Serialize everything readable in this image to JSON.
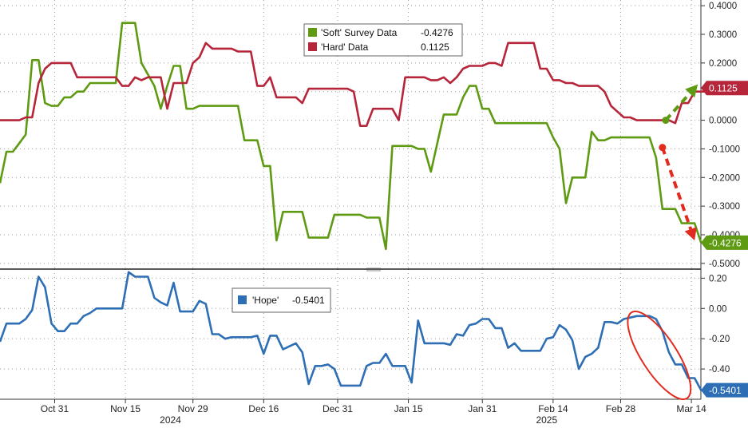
{
  "chart_data": [
    {
      "type": "line",
      "title": "",
      "ylim": [
        -0.52,
        0.42
      ],
      "y_ticks": [
        "0.4000",
        "0.3000",
        "0.2000",
        "0.1000",
        "0.0000",
        "-0.1000",
        "-0.2000",
        "-0.3000",
        "-0.4000",
        "-0.5000"
      ],
      "y_tick_values": [
        0.4,
        0.3,
        0.2,
        0.1,
        0,
        -0.1,
        -0.2,
        -0.3,
        -0.4,
        -0.5
      ],
      "grid": true,
      "legend": "top-center",
      "x_index_range": [
        0,
        106
      ],
      "series": [
        {
          "name": "'Soft' Survey Data",
          "last_label": "-0.4276",
          "color": "#5e9a12",
          "values": [
            -0.22,
            -0.11,
            -0.11,
            -0.08,
            -0.05,
            0.21,
            0.21,
            0.06,
            0.05,
            0.05,
            0.08,
            0.08,
            0.1,
            0.1,
            0.13,
            0.13,
            0.13,
            0.13,
            0.13,
            0.34,
            0.34,
            0.34,
            0.2,
            0.16,
            0.12,
            0.04,
            0.12,
            0.19,
            0.19,
            0.04,
            0.04,
            0.05,
            0.05,
            0.05,
            0.05,
            0.05,
            0.05,
            0.05,
            -0.07,
            -0.07,
            -0.07,
            -0.16,
            -0.16,
            -0.42,
            -0.32,
            -0.32,
            -0.32,
            -0.32,
            -0.41,
            -0.41,
            -0.41,
            -0.41,
            -0.33,
            -0.33,
            -0.33,
            -0.33,
            -0.33,
            -0.34,
            -0.34,
            -0.34,
            -0.45,
            -0.09,
            -0.09,
            -0.09,
            -0.09,
            -0.1,
            -0.1,
            -0.18,
            -0.08,
            0.02,
            0.02,
            0.02,
            0.08,
            0.12,
            0.12,
            0.04,
            0.04,
            -0.01,
            -0.01,
            -0.01,
            -0.01,
            -0.01,
            -0.01,
            -0.01,
            -0.01,
            -0.01,
            -0.06,
            -0.1,
            -0.29,
            -0.2,
            -0.2,
            -0.2,
            -0.04,
            -0.07,
            -0.07,
            -0.06,
            -0.06,
            -0.06,
            -0.06,
            -0.06,
            -0.06,
            -0.06,
            -0.13,
            -0.31,
            -0.31,
            -0.31,
            -0.36,
            -0.36,
            -0.36,
            -0.4276
          ]
        },
        {
          "name": "'Hard' Data",
          "last_label": "0.1125",
          "color": "#b6253a",
          "values": [
            0.0,
            0.0,
            0.0,
            0.0,
            0.01,
            0.01,
            0.13,
            0.18,
            0.2,
            0.2,
            0.2,
            0.2,
            0.15,
            0.15,
            0.15,
            0.15,
            0.15,
            0.15,
            0.15,
            0.12,
            0.12,
            0.15,
            0.14,
            0.15,
            0.15,
            0.15,
            0.04,
            0.13,
            0.13,
            0.13,
            0.2,
            0.22,
            0.27,
            0.25,
            0.25,
            0.25,
            0.25,
            0.24,
            0.24,
            0.24,
            0.12,
            0.12,
            0.15,
            0.08,
            0.08,
            0.08,
            0.08,
            0.06,
            0.11,
            0.11,
            0.11,
            0.11,
            0.11,
            0.11,
            0.11,
            0.1,
            -0.02,
            -0.02,
            0.04,
            0.04,
            0.04,
            0.04,
            0.0,
            0.15,
            0.15,
            0.15,
            0.15,
            0.14,
            0.14,
            0.15,
            0.13,
            0.15,
            0.18,
            0.19,
            0.19,
            0.19,
            0.2,
            0.2,
            0.19,
            0.27,
            0.27,
            0.27,
            0.27,
            0.27,
            0.18,
            0.18,
            0.14,
            0.14,
            0.13,
            0.13,
            0.12,
            0.12,
            0.12,
            0.12,
            0.1,
            0.05,
            0.03,
            0.01,
            0.01,
            0.0,
            0.0,
            0.0,
            0.0,
            0.0,
            0.0,
            -0.01,
            0.06,
            0.06,
            0.1,
            0.1,
            0.1,
            0.1125
          ]
        }
      ],
      "annotations": {
        "arrow_up_color": "#5e9a12",
        "arrow_down_color": "#e12b1f"
      }
    },
    {
      "type": "line",
      "title": "",
      "ylim": [
        -0.6,
        0.26
      ],
      "y_ticks": [
        "0.20",
        "0.00",
        "-0.20",
        "-0.40"
      ],
      "y_tick_values": [
        0.2,
        0,
        -0.2,
        -0.4
      ],
      "grid": true,
      "legend": "top-left",
      "x_index_range": [
        0,
        106
      ],
      "series": [
        {
          "name": "'Hope'",
          "last_label": "-0.5401",
          "color": "#2d6eb4",
          "values": [
            -0.22,
            -0.1,
            -0.1,
            -0.1,
            -0.07,
            -0.01,
            0.21,
            0.14,
            -0.1,
            -0.15,
            -0.15,
            -0.1,
            -0.1,
            -0.05,
            -0.03,
            0.0,
            0.0,
            0.0,
            0.0,
            0.0,
            0.24,
            0.21,
            0.21,
            0.21,
            0.07,
            0.04,
            0.02,
            0.17,
            -0.02,
            -0.02,
            -0.02,
            0.05,
            0.03,
            -0.17,
            -0.17,
            -0.2,
            -0.19,
            -0.19,
            -0.19,
            -0.19,
            -0.18,
            -0.3,
            -0.18,
            -0.18,
            -0.27,
            -0.25,
            -0.23,
            -0.29,
            -0.5,
            -0.38,
            -0.38,
            -0.37,
            -0.4,
            -0.51,
            -0.51,
            -0.51,
            -0.51,
            -0.38,
            -0.36,
            -0.36,
            -0.3,
            -0.38,
            -0.38,
            -0.38,
            -0.49,
            -0.08,
            -0.23,
            -0.23,
            -0.23,
            -0.23,
            -0.24,
            -0.17,
            -0.18,
            -0.11,
            -0.1,
            -0.07,
            -0.07,
            -0.13,
            -0.13,
            -0.26,
            -0.23,
            -0.28,
            -0.28,
            -0.28,
            -0.28,
            -0.2,
            -0.19,
            -0.11,
            -0.14,
            -0.21,
            -0.4,
            -0.32,
            -0.3,
            -0.26,
            -0.09,
            -0.09,
            -0.1,
            -0.07,
            -0.06,
            -0.05,
            -0.05,
            -0.05,
            -0.07,
            -0.15,
            -0.29,
            -0.37,
            -0.37,
            -0.46,
            -0.46,
            -0.5401
          ]
        }
      ],
      "annotations": {
        "ellipse_color": "#e12b1f"
      }
    }
  ],
  "x_axis": {
    "ticks": [
      {
        "label": "Oct 31",
        "i": 8.5
      },
      {
        "label": "Nov 15",
        "i": 19.5
      },
      {
        "label": "Nov 29",
        "i": 30
      },
      {
        "label": "Dec 16",
        "i": 41
      },
      {
        "label": "Dec 31",
        "i": 52.5
      },
      {
        "label": "Jan 15",
        "i": 63.5
      },
      {
        "label": "Jan 31",
        "i": 75
      },
      {
        "label": "Feb 14",
        "i": 86
      },
      {
        "label": "Feb 28",
        "i": 96.5
      },
      {
        "label": "Mar 14",
        "i": 107.5
      }
    ],
    "years": [
      {
        "label": "2024",
        "i": 26.5
      },
      {
        "label": "2025",
        "i": 85
      }
    ]
  }
}
